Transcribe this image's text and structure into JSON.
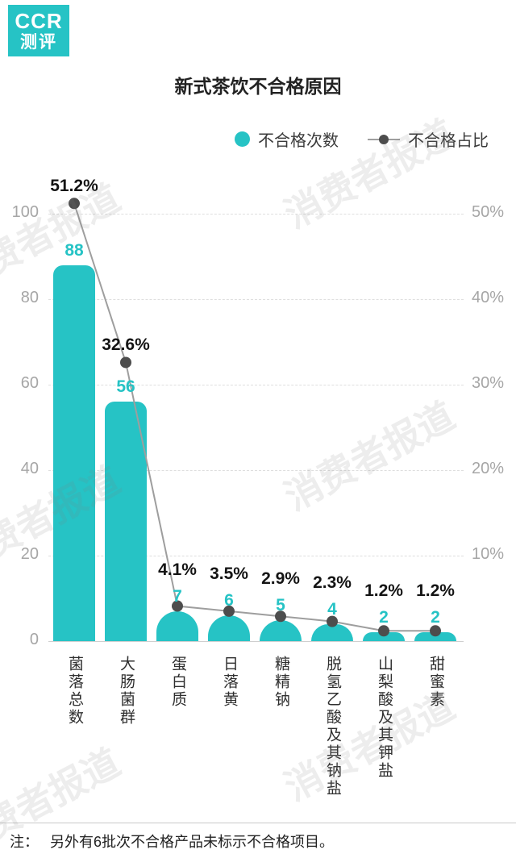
{
  "logo": {
    "line1": "CCR",
    "line2": "测评"
  },
  "title": "新式茶饮不合格原因",
  "legend": [
    {
      "label": "不合格次数",
      "type": "bar"
    },
    {
      "label": "不合格占比",
      "type": "line"
    }
  ],
  "watermark": "消费者报道",
  "note": {
    "prefix": "注：",
    "text": "另外有6批次不合格产品未标示不合格项目。"
  },
  "colors": {
    "teal": "#26c3c5",
    "dot": "#4d4d4d",
    "trend_line": "#9e9e9e",
    "axis_text": "#a6a6a6",
    "pct_label": "#141414"
  },
  "chart_data": {
    "type": "bar",
    "title": "新式茶饮不合格原因",
    "xlabel": "",
    "ylabel_left": "不合格次数",
    "ylabel_right": "不合格占比",
    "categories": [
      "菌落总数",
      "大肠菌群",
      "蛋白质",
      "日落黄",
      "糖精钠",
      "脱氢乙酸及其钠盐",
      "山梨酸及其钾盐",
      "甜蜜素"
    ],
    "series": [
      {
        "name": "不合格次数",
        "type": "bar",
        "values": [
          88,
          56,
          7,
          6,
          5,
          4,
          2,
          2
        ]
      },
      {
        "name": "不合格占比",
        "type": "line",
        "unit": "%",
        "values": [
          51.2,
          32.6,
          4.1,
          3.5,
          2.9,
          2.3,
          1.2,
          1.2
        ]
      }
    ],
    "left_axis": {
      "ticks": [
        0,
        20,
        40,
        60,
        80,
        100
      ],
      "max": 100
    },
    "right_axis": {
      "tick_labels": [
        "10%",
        "20%",
        "30%",
        "40%",
        "50%"
      ],
      "tick_values": [
        10,
        20,
        30,
        40,
        50
      ],
      "max": 50
    },
    "grid": "horizontal dashed",
    "legend_position": "top-right"
  }
}
